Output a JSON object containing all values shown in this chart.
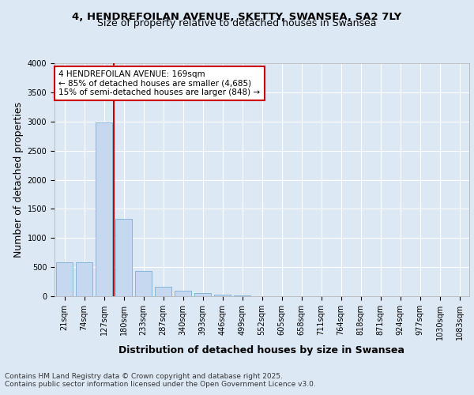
{
  "title_line1": "4, HENDREFOILAN AVENUE, SKETTY, SWANSEA, SA2 7LY",
  "title_line2": "Size of property relative to detached houses in Swansea",
  "xlabel": "Distribution of detached houses by size in Swansea",
  "ylabel": "Number of detached properties",
  "categories": [
    "21sqm",
    "74sqm",
    "127sqm",
    "180sqm",
    "233sqm",
    "287sqm",
    "340sqm",
    "393sqm",
    "446sqm",
    "499sqm",
    "552sqm",
    "605sqm",
    "658sqm",
    "711sqm",
    "764sqm",
    "818sqm",
    "871sqm",
    "924sqm",
    "977sqm",
    "1030sqm",
    "1083sqm"
  ],
  "values": [
    580,
    580,
    2980,
    1330,
    430,
    160,
    90,
    50,
    30,
    10,
    0,
    0,
    0,
    0,
    0,
    0,
    0,
    0,
    0,
    0,
    0
  ],
  "bar_color": "#c5d8ef",
  "bar_edge_color": "#7aadd4",
  "red_line_x": 2.5,
  "red_line_color": "#cc0000",
  "annotation_text": "4 HENDREFOILAN AVENUE: 169sqm\n← 85% of detached houses are smaller (4,685)\n15% of semi-detached houses are larger (848) →",
  "annotation_box_color": "#ffffff",
  "annotation_box_edge": "#cc0000",
  "ylim": [
    0,
    4000
  ],
  "yticks": [
    0,
    500,
    1000,
    1500,
    2000,
    2500,
    3000,
    3500,
    4000
  ],
  "background_color": "#dde8f5",
  "plot_bg_color": "#dde8f5",
  "grid_color": "#ffffff",
  "footer_line1": "Contains HM Land Registry data © Crown copyright and database right 2025.",
  "footer_line2": "Contains public sector information licensed under the Open Government Licence v3.0.",
  "title_fontsize": 9.5,
  "subtitle_fontsize": 9,
  "axis_label_fontsize": 9,
  "tick_fontsize": 7,
  "annotation_fontsize": 7.5,
  "footer_fontsize": 6.5
}
